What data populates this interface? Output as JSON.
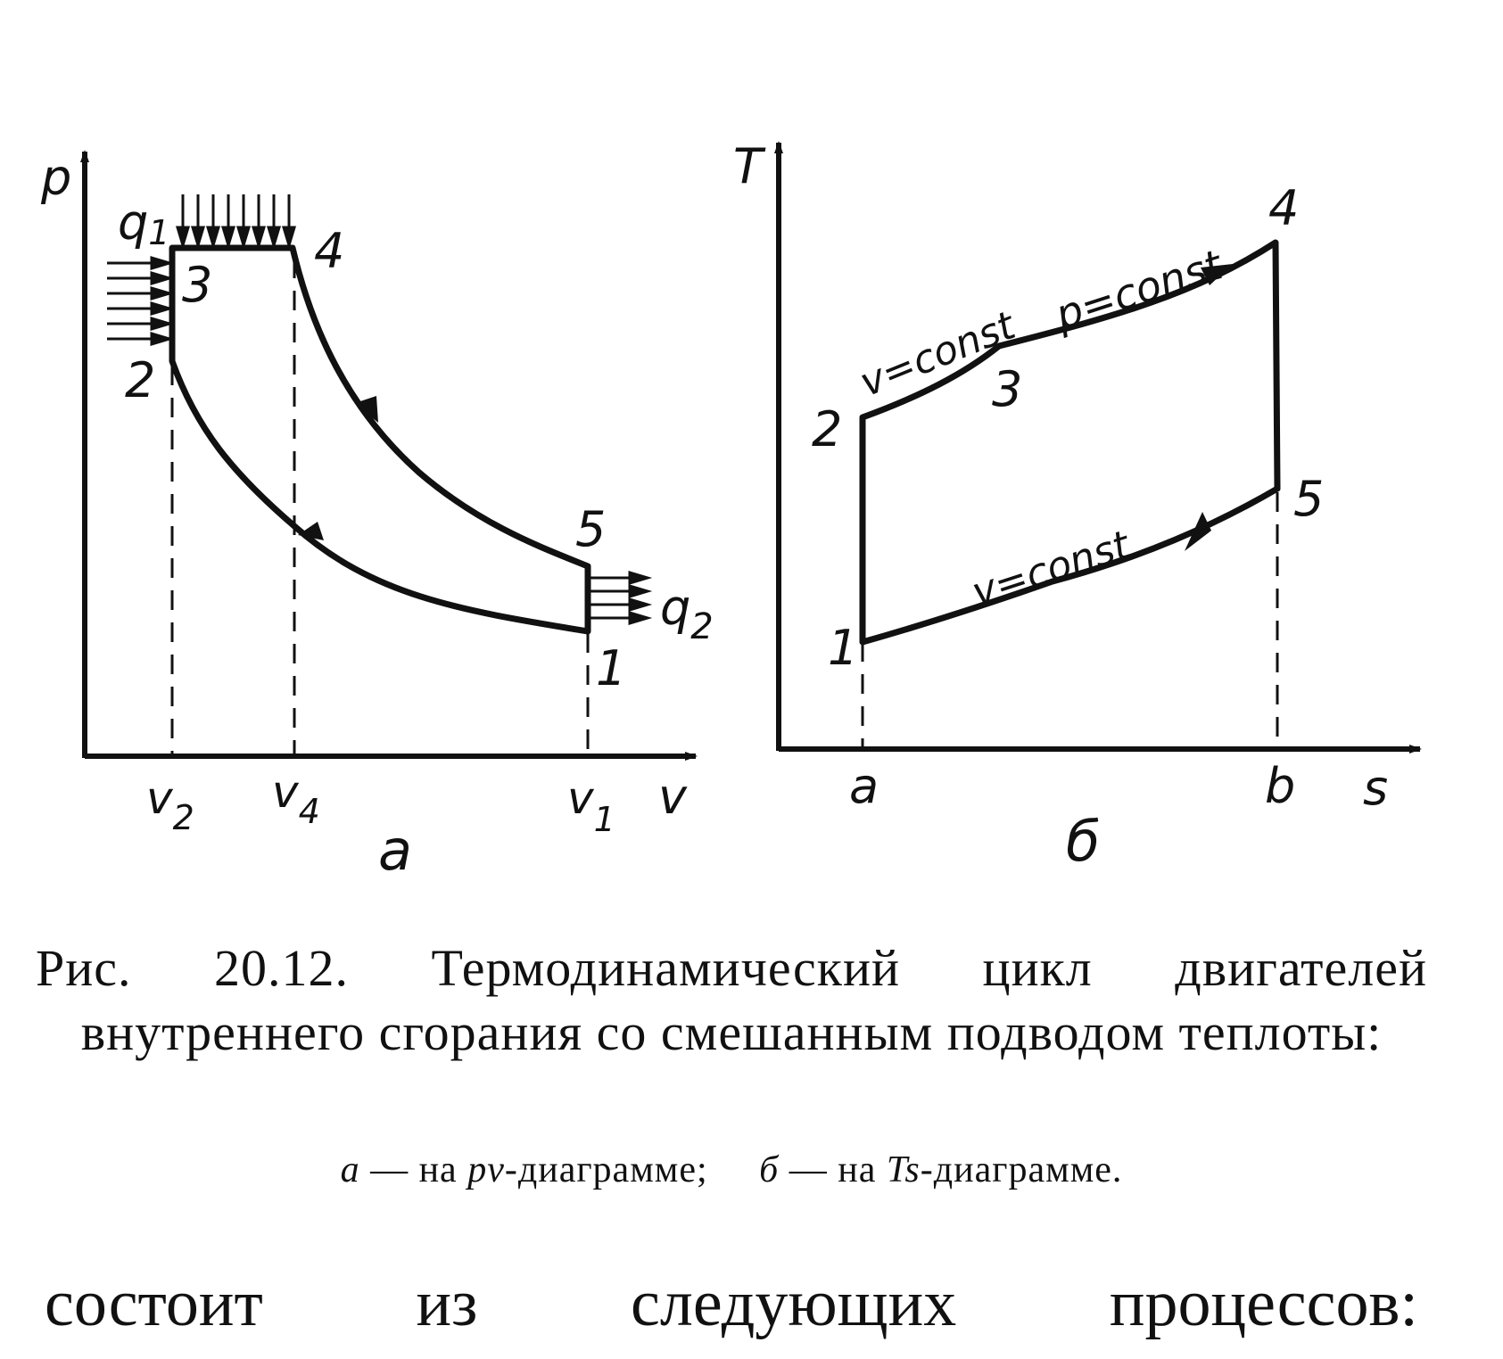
{
  "diagram_a": {
    "axis_y": "p",
    "axis_x": "v",
    "points": [
      "1",
      "2",
      "3",
      "4",
      "5"
    ],
    "heat_in": "q",
    "heat_in_sub": "1",
    "heat_out": "q",
    "heat_out_sub": "2",
    "ticks": [
      {
        "main": "v",
        "sub": "2"
      },
      {
        "main": "v",
        "sub": "4"
      },
      {
        "main": "v",
        "sub": "1"
      }
    ],
    "panel_letter": "a"
  },
  "diagram_b": {
    "axis_y": "T",
    "axis_x": "s",
    "points": [
      "1",
      "2",
      "3",
      "4",
      "5"
    ],
    "label_v_upper": "v=const",
    "label_p": "p=const",
    "label_v_lower": "v=const",
    "ticks": [
      "a",
      "b"
    ],
    "panel_letter": "б"
  },
  "caption": {
    "main": "Рис. 20.12. Термодинамический цикл двигателей внутреннего сгорания со смешанным подводом теплоты:",
    "sub_a_letter": "а",
    "sub_a_dash": "— на",
    "sub_a_diagram": "pv",
    "sub_a_rest": "-диаграмме;",
    "sub_b_letter": "б",
    "sub_b_dash": "— на",
    "sub_b_diagram": "Ts",
    "sub_b_rest": "-диаграмме."
  },
  "body_text": "состоит из следующих процессов:"
}
